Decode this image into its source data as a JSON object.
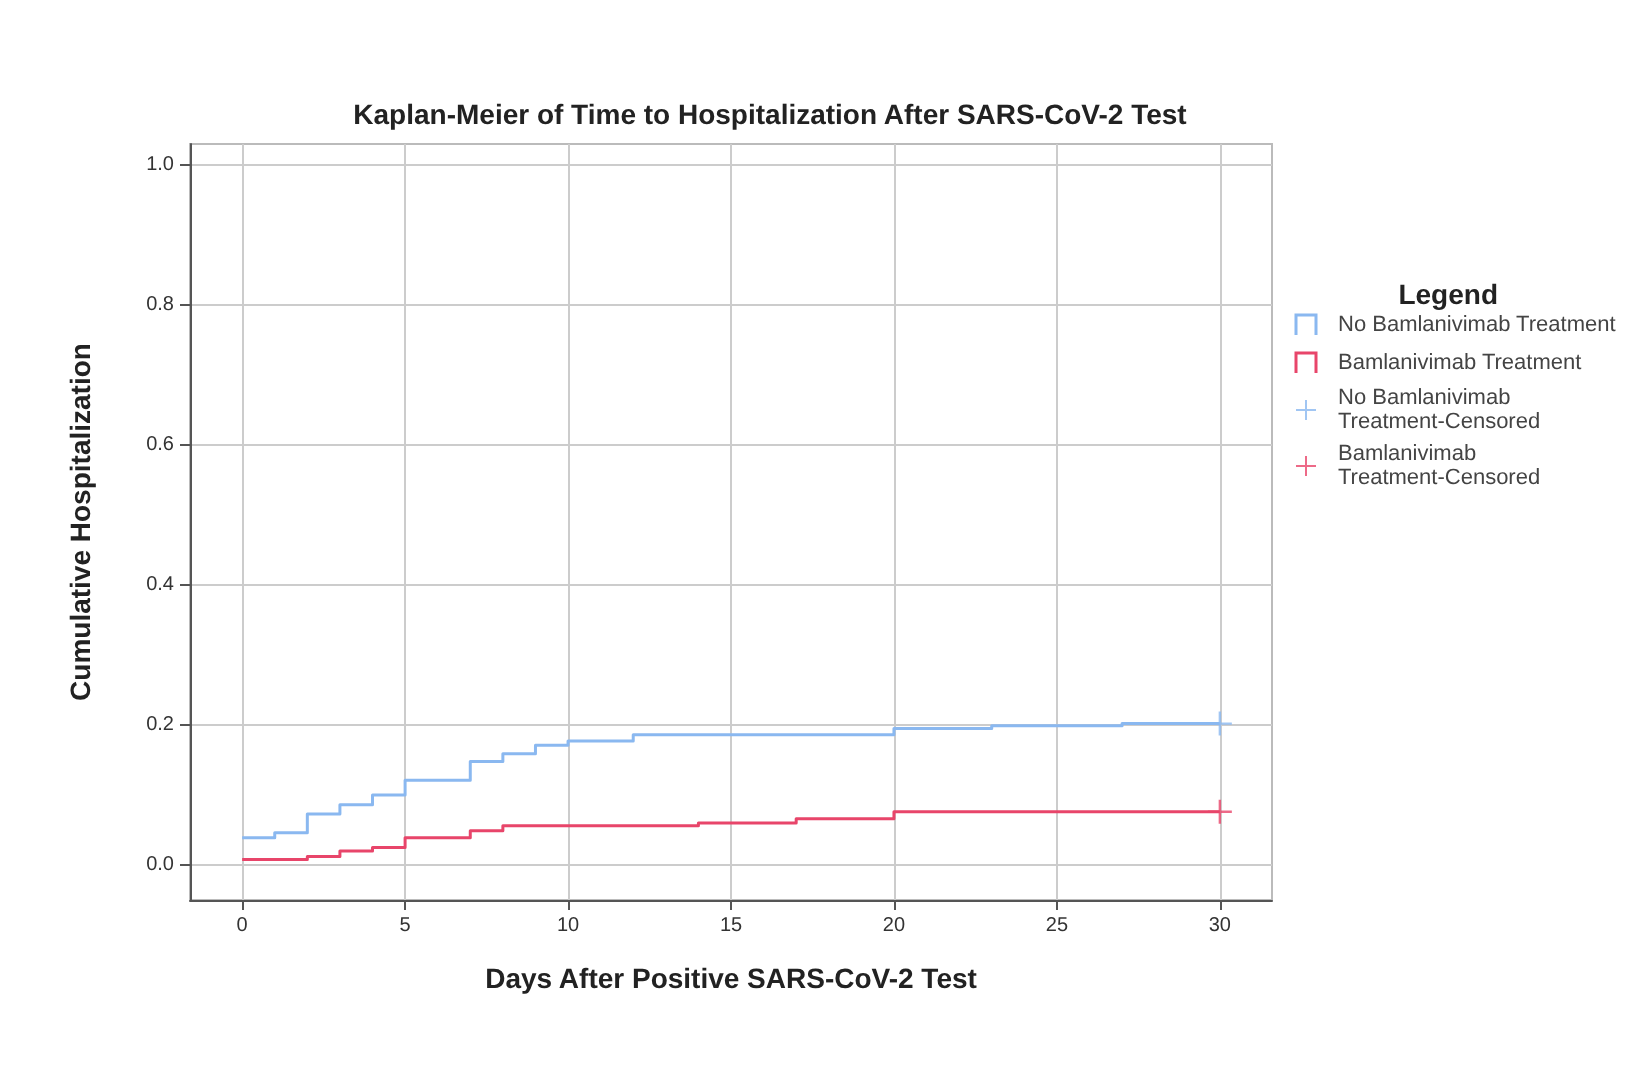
{
  "chart_data": {
    "type": "step",
    "title": "Kaplan-Meier of Time to Hospitalization After SARS-CoV-2 Test",
    "xlabel": "Days After Positive SARS-CoV-2 Test",
    "ylabel": "Cumulative Hospitalization",
    "legend_title": "Legend",
    "legend": "right",
    "grid": true,
    "line_style": "solid",
    "marker": "none",
    "xlim": [
      -1.6,
      31.6
    ],
    "xticks": [
      0,
      5,
      10,
      15,
      20,
      25,
      30
    ],
    "ylim": [
      -0.05,
      1.03
    ],
    "yticks": [
      {
        "value": 0,
        "label": "0.0"
      },
      {
        "value": 0.2,
        "label": "0.2"
      },
      {
        "value": 0.4,
        "label": "0.4"
      },
      {
        "value": 0.6,
        "label": "0.6"
      },
      {
        "value": 0.8,
        "label": "0.8"
      },
      {
        "value": 1,
        "label": "1.0"
      }
    ],
    "series": [
      {
        "name": "No Bamlanivimab Treatment",
        "color": "#8ab8f0",
        "x": [
          0,
          1,
          2,
          3,
          4,
          5,
          7,
          8,
          9,
          10,
          12,
          20,
          23,
          27,
          30
        ],
        "values": [
          0.039,
          0.046,
          0.073,
          0.086,
          0.1,
          0.121,
          0.148,
          0.159,
          0.171,
          0.177,
          0.186,
          0.195,
          0.199,
          0.202,
          0.202
        ]
      },
      {
        "name": "Bamlanivimab Treatment",
        "color": "#e8456a",
        "x": [
          0,
          2,
          3,
          4,
          5,
          7,
          8,
          14,
          17,
          20,
          30
        ],
        "values": [
          0.008,
          0.012,
          0.02,
          0.025,
          0.039,
          0.049,
          0.056,
          0.06,
          0.066,
          0.076,
          0.076
        ]
      },
      {
        "name": "No Bamlanivimab Treatment-Censored",
        "type": "scatter",
        "marker": "cross",
        "color": "#8ab8f0",
        "x": [
          30
        ],
        "values": [
          0.202
        ]
      },
      {
        "name": "Bamlanivimab Treatment-Censored",
        "type": "scatter",
        "marker": "cross",
        "color": "#e8456a",
        "x": [
          30
        ],
        "values": [
          0.076
        ]
      }
    ]
  }
}
